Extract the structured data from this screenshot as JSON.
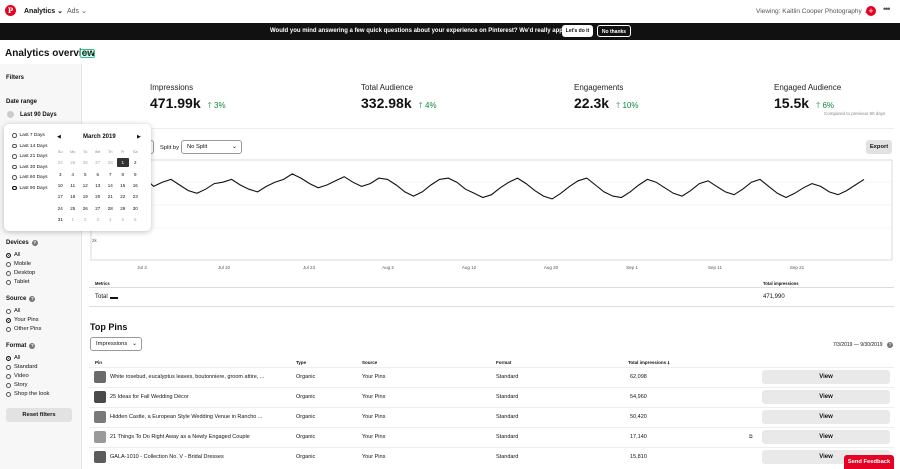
{
  "nav": {
    "logo": "P",
    "analytics": "Analytics ⌄",
    "ads": "Ads ⌄",
    "viewing": "Viewing: Kaitlin Cooper Photography ⌄",
    "more": "•••"
  },
  "banner": {
    "text": "Would you mind answering a few quick questions about your experience on Pinterest? We'd really appreciate it.",
    "yes": "Let's do it",
    "no": "No thanks"
  },
  "page": {
    "title": "Analytics overview",
    "badge": "New"
  },
  "sidebar": {
    "filters": "Filters",
    "date_range_label": "Date range",
    "date_range_value": "Last 90 Days",
    "devices_label": "Devices",
    "devices": [
      "All",
      "Mobile",
      "Desktop",
      "Tablet"
    ],
    "source_label": "Source",
    "source": [
      "All",
      "Your Pins",
      "Other Pins"
    ],
    "format_label": "Format",
    "format": [
      "All",
      "Standard",
      "Video",
      "Story",
      "Shop the look"
    ],
    "reset": "Reset filters"
  },
  "date_dropdown": {
    "options": [
      "Last 7 Days",
      "Last 14 Days",
      "Last 21 Days",
      "Last 30 Days",
      "Last 60 Days",
      "Last 90 Days"
    ],
    "selected_option": "Last 90 Days",
    "month": "March 2019",
    "weekdays": [
      "Su",
      "Mo",
      "Tu",
      "We",
      "Th",
      "Fr",
      "Sa"
    ],
    "weeks": [
      [
        "24",
        "25",
        "26",
        "27",
        "28",
        "1",
        "2"
      ],
      [
        "3",
        "4",
        "5",
        "6",
        "7",
        "8",
        "9"
      ],
      [
        "10",
        "11",
        "12",
        "13",
        "14",
        "15",
        "16"
      ],
      [
        "17",
        "18",
        "19",
        "20",
        "21",
        "22",
        "23"
      ],
      [
        "24",
        "25",
        "26",
        "27",
        "28",
        "29",
        "30"
      ],
      [
        "31",
        "1",
        "2",
        "3",
        "4",
        "5",
        "6"
      ]
    ],
    "selected_day": "1"
  },
  "metrics": [
    {
      "label": "Impressions",
      "value": "471.99k",
      "change": "3%"
    },
    {
      "label": "Total Audience",
      "value": "332.98k",
      "change": "4%"
    },
    {
      "label": "Engagements",
      "value": "22.3k",
      "change": "10%"
    },
    {
      "label": "Engaged Audience",
      "value": "15.5k",
      "change": "6%"
    }
  ],
  "compared_text": "Compared to previous 90 days",
  "controls": {
    "split_by": "Split by",
    "split_value": "No Split",
    "export": "Export"
  },
  "chart_data": {
    "type": "line",
    "x_tick_labels": [
      "Jul 3",
      "Jul 10",
      "Jul 23",
      "Aug 2",
      "Aug 12",
      "Aug 20",
      "Sep 1",
      "Sep 11",
      "Sep 21"
    ],
    "y_tick_labels": [
      "2k"
    ],
    "series": [
      {
        "values": [
          5.3,
          5.0,
          4.7,
          5.4,
          5.7,
          5.5,
          5.9,
          5.3,
          5.6,
          5.8,
          5.4,
          5.0,
          4.8,
          5.1,
          5.5,
          5.6,
          5.8,
          5.4,
          5.1,
          4.9,
          5.3,
          5.6,
          5.8,
          6.2,
          5.9,
          5.5,
          5.2,
          5.4,
          5.7,
          6.0,
          5.6,
          5.3,
          5.5,
          5.9,
          5.8,
          5.4,
          4.9,
          4.6,
          4.9,
          5.4,
          5.8,
          5.9,
          5.6,
          5.1,
          4.8,
          4.5,
          4.7,
          5.2,
          5.6,
          5.9,
          5.5,
          5.0,
          4.6,
          4.4,
          4.8,
          5.3,
          5.7,
          5.9,
          5.4,
          4.9,
          4.6,
          4.5,
          4.9,
          5.4,
          5.8,
          5.6,
          5.2,
          4.8,
          4.6,
          5.0,
          5.5,
          5.7,
          5.3,
          4.9,
          4.7,
          5.1,
          5.6,
          5.8,
          5.3,
          4.8,
          4.5,
          4.8,
          5.2,
          5.5,
          5.3,
          4.9,
          4.7,
          5.0,
          5.4,
          5.8
        ]
      }
    ]
  },
  "metrics_table": {
    "col_metrics": "Metrics",
    "col_total": "Total impressions",
    "row_label": "Total",
    "row_value": "471,990"
  },
  "top_pins": {
    "title": "Top Pins",
    "sort_select": "Impressions",
    "date_range": "7/3/2019 — 9/30/2019",
    "columns": [
      "Pin",
      "Type",
      "Source",
      "Format",
      "Total impressions"
    ],
    "view_label": "View",
    "rows": [
      {
        "title": "White rosebud, eucalyptus leaves, boutonniere, groom attire, ...",
        "type": "Organic",
        "source": "Your Pins",
        "format": "Standard",
        "impressions": "62,098",
        "thumb": "#6b6b6b"
      },
      {
        "title": "25 Ideas for Fall Wedding Décor",
        "type": "Organic",
        "source": "Your Pins",
        "format": "Standard",
        "impressions": "54,960",
        "thumb": "#4a4a4a"
      },
      {
        "title": "Hidden Castle, a European Style Wedding Venue in Rancho ...",
        "type": "Organic",
        "source": "Your Pins",
        "format": "Standard",
        "impressions": "50,420",
        "thumb": "#7a7a7a"
      },
      {
        "title": "21 Things To Do Right Away as a Newly Engaged Couple",
        "type": "Organic",
        "source": "Your Pins",
        "format": "Standard",
        "impressions": "17,140",
        "thumb": "#9a9a9a"
      },
      {
        "title": "GALA-1010 - Collection No. V - Bridal Dresses",
        "type": "Organic",
        "source": "Your Pins",
        "format": "Standard",
        "impressions": "15,810",
        "thumb": "#5c5c5c"
      }
    ]
  },
  "feedback": "Send Feedback",
  "colors": {
    "brand_red": "#e60023",
    "positive_green": "#0a8a3d"
  }
}
